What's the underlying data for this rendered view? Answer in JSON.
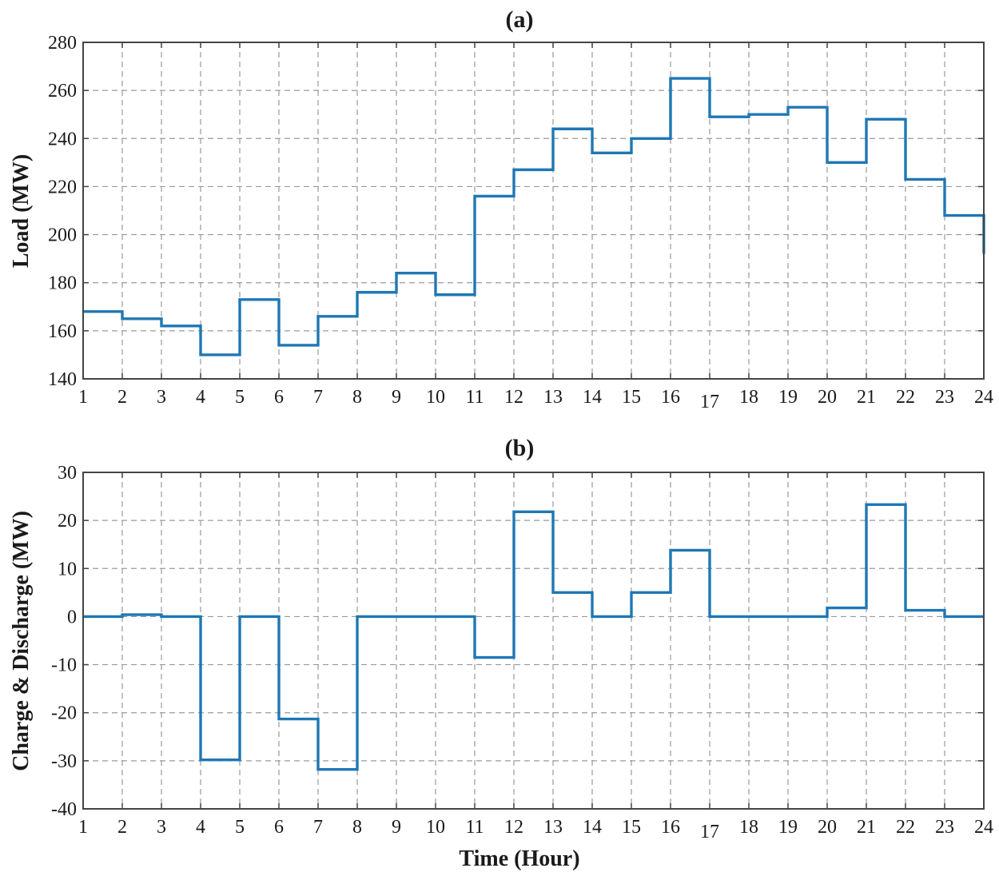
{
  "chart_data": [
    {
      "type": "line",
      "step": "post",
      "title": "(a)",
      "xlabel": "",
      "ylabel": "Load (MW)",
      "xlim": [
        1,
        24
      ],
      "ylim": [
        140,
        280
      ],
      "grid": true,
      "xticks": [
        1,
        2,
        3,
        4,
        5,
        6,
        7,
        8,
        9,
        10,
        11,
        12,
        13,
        14,
        15,
        16,
        17,
        18,
        19,
        20,
        21,
        22,
        23,
        24
      ],
      "yticks": [
        140,
        160,
        180,
        200,
        220,
        240,
        260,
        280
      ],
      "color": "#1f77b4",
      "series": [
        {
          "x": [
            1,
            2,
            3,
            4,
            5,
            6,
            7,
            8,
            9,
            10,
            11,
            12,
            13,
            14,
            15,
            16,
            17,
            18,
            19,
            20,
            21,
            22,
            23,
            24
          ],
          "values": [
            168,
            165,
            162,
            150,
            173,
            154,
            166,
            176,
            184,
            175,
            216,
            227,
            244,
            234,
            240,
            265,
            249,
            250,
            253,
            230,
            248,
            223,
            208,
            192
          ]
        }
      ]
    },
    {
      "type": "line",
      "step": "post",
      "title": "(b)",
      "xlabel": "Time (Hour)",
      "ylabel": "Charge & Discharge (MW)",
      "xlim": [
        1,
        24
      ],
      "ylim": [
        -40,
        30
      ],
      "grid": true,
      "xticks": [
        1,
        2,
        3,
        4,
        5,
        6,
        7,
        8,
        9,
        10,
        11,
        12,
        13,
        14,
        15,
        16,
        17,
        18,
        19,
        20,
        21,
        22,
        23,
        24
      ],
      "yticks": [
        -40,
        -30,
        -20,
        -10,
        0,
        10,
        20,
        30
      ],
      "color": "#1f77b4",
      "series": [
        {
          "x": [
            1,
            2,
            3,
            4,
            5,
            6,
            7,
            8,
            9,
            10,
            11,
            12,
            13,
            14,
            15,
            16,
            17,
            18,
            19,
            20,
            21,
            22,
            23,
            24
          ],
          "values": [
            0,
            0.4,
            0,
            -29.8,
            0,
            -21.3,
            -31.8,
            0,
            0,
            0,
            -8.5,
            21.8,
            5,
            0,
            5,
            13.8,
            0,
            0,
            0,
            1.8,
            23.3,
            1.3,
            0,
            0
          ]
        }
      ]
    }
  ]
}
